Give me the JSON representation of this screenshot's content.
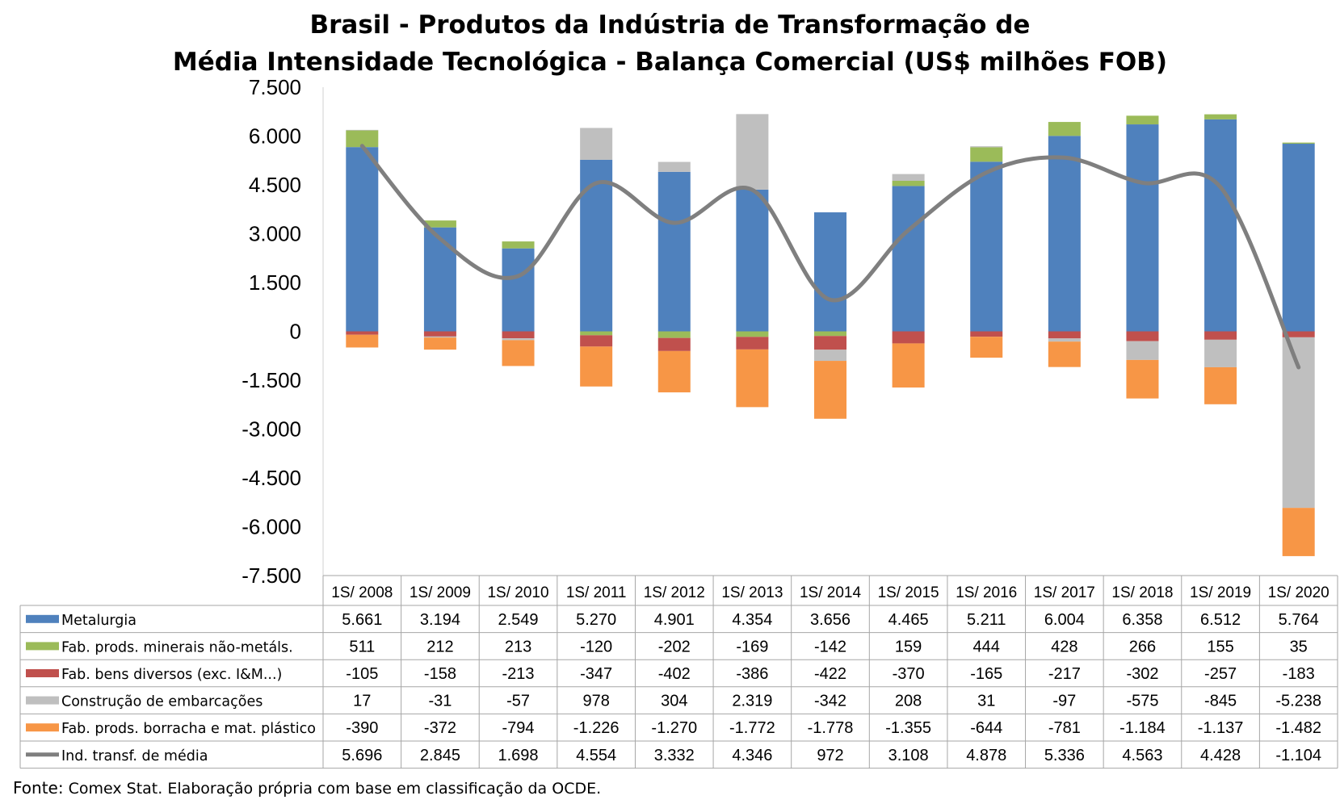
{
  "chart_data": {
    "type": "bar",
    "stacked": true,
    "title": "Brasil - Produtos da Indústria de Transformação de",
    "subtitle": "Média Intensidade Tecnológica - Balança Comercial (US$ milhões FOB)",
    "xlabel": "",
    "ylabel": "",
    "ylim": [
      -7500,
      7500
    ],
    "yticks": [
      "7.500",
      "6.000",
      "4.500",
      "3.000",
      "1.500",
      "0",
      "-1.500",
      "-3.000",
      "-4.500",
      "-6.000",
      "-7.500"
    ],
    "ytick_values": [
      7500,
      6000,
      4500,
      3000,
      1500,
      0,
      -1500,
      -3000,
      -4500,
      -6000,
      -7500
    ],
    "grid": false,
    "legend_placement": "data-table",
    "categories": [
      "1S/ 2008",
      "1S/ 2009",
      "1S/ 2010",
      "1S/ 2011",
      "1S/ 2012",
      "1S/ 2013",
      "1S/ 2014",
      "1S/ 2015",
      "1S/ 2016",
      "1S/ 2017",
      "1S/ 2018",
      "1S/ 2019",
      "1S/ 2020"
    ],
    "series": [
      {
        "name": "Metalurgia",
        "kind": "bar",
        "color": "#4f81bd",
        "values": [
          5661,
          3194,
          2549,
          5270,
          4901,
          4354,
          3656,
          4465,
          5211,
          6004,
          6358,
          6512,
          5764
        ],
        "labels": [
          "5.661",
          "3.194",
          "2.549",
          "5.270",
          "4.901",
          "4.354",
          "3.656",
          "4.465",
          "5.211",
          "6.004",
          "6.358",
          "6.512",
          "5.764"
        ]
      },
      {
        "name": "Fab. prods. minerais não-metáls.",
        "kind": "bar",
        "color": "#9bbb59",
        "values": [
          511,
          212,
          213,
          -120,
          -202,
          -169,
          -142,
          159,
          444,
          428,
          266,
          155,
          35
        ],
        "labels": [
          "511",
          "212",
          "213",
          "-120",
          "-202",
          "-169",
          "-142",
          "159",
          "444",
          "428",
          "266",
          "155",
          "35"
        ]
      },
      {
        "name": "Fab. bens diversos (exc. I&M...)",
        "kind": "bar",
        "color": "#c0504d",
        "values": [
          -105,
          -158,
          -213,
          -347,
          -402,
          -386,
          -422,
          -370,
          -165,
          -217,
          -302,
          -257,
          -183
        ],
        "labels": [
          "-105",
          "-158",
          "-213",
          "-347",
          "-402",
          "-386",
          "-422",
          "-370",
          "-165",
          "-217",
          "-302",
          "-257",
          "-183"
        ]
      },
      {
        "name": "Construção de embarcações",
        "kind": "bar",
        "color": "#bfbfbf",
        "values": [
          17,
          -31,
          -57,
          978,
          304,
          2319,
          -342,
          208,
          31,
          -97,
          -575,
          -845,
          -5238
        ],
        "labels": [
          "17",
          "-31",
          "-57",
          "978",
          "304",
          "2.319",
          "-342",
          "208",
          "31",
          "-97",
          "-575",
          "-845",
          "-5.238"
        ]
      },
      {
        "name": "Fab. prods. borracha e mat. plástico",
        "kind": "bar",
        "color": "#f79646",
        "values": [
          -390,
          -372,
          -794,
          -1226,
          -1270,
          -1772,
          -1778,
          -1355,
          -644,
          -781,
          -1184,
          -1137,
          -1482
        ],
        "labels": [
          "-390",
          "-372",
          "-794",
          "-1.226",
          "-1.270",
          "-1.772",
          "-1.778",
          "-1.355",
          "-644",
          "-781",
          "-1.184",
          "-1.137",
          "-1.482"
        ]
      },
      {
        "name": "Ind. transf. de média",
        "kind": "line",
        "color": "#7f7f7f",
        "values": [
          5696,
          2845,
          1698,
          4554,
          3332,
          4346,
          972,
          3108,
          4878,
          5336,
          4563,
          4428,
          -1104
        ],
        "labels": [
          "5.696",
          "2.845",
          "1.698",
          "4.554",
          "3.332",
          "4.346",
          "972",
          "3.108",
          "4.878",
          "5.336",
          "4.563",
          "4.428",
          "-1.104"
        ]
      }
    ]
  },
  "source": {
    "label": "Fonte:",
    "text": "Comex Stat. Elaboração própria com base em classificação da OCDE."
  }
}
